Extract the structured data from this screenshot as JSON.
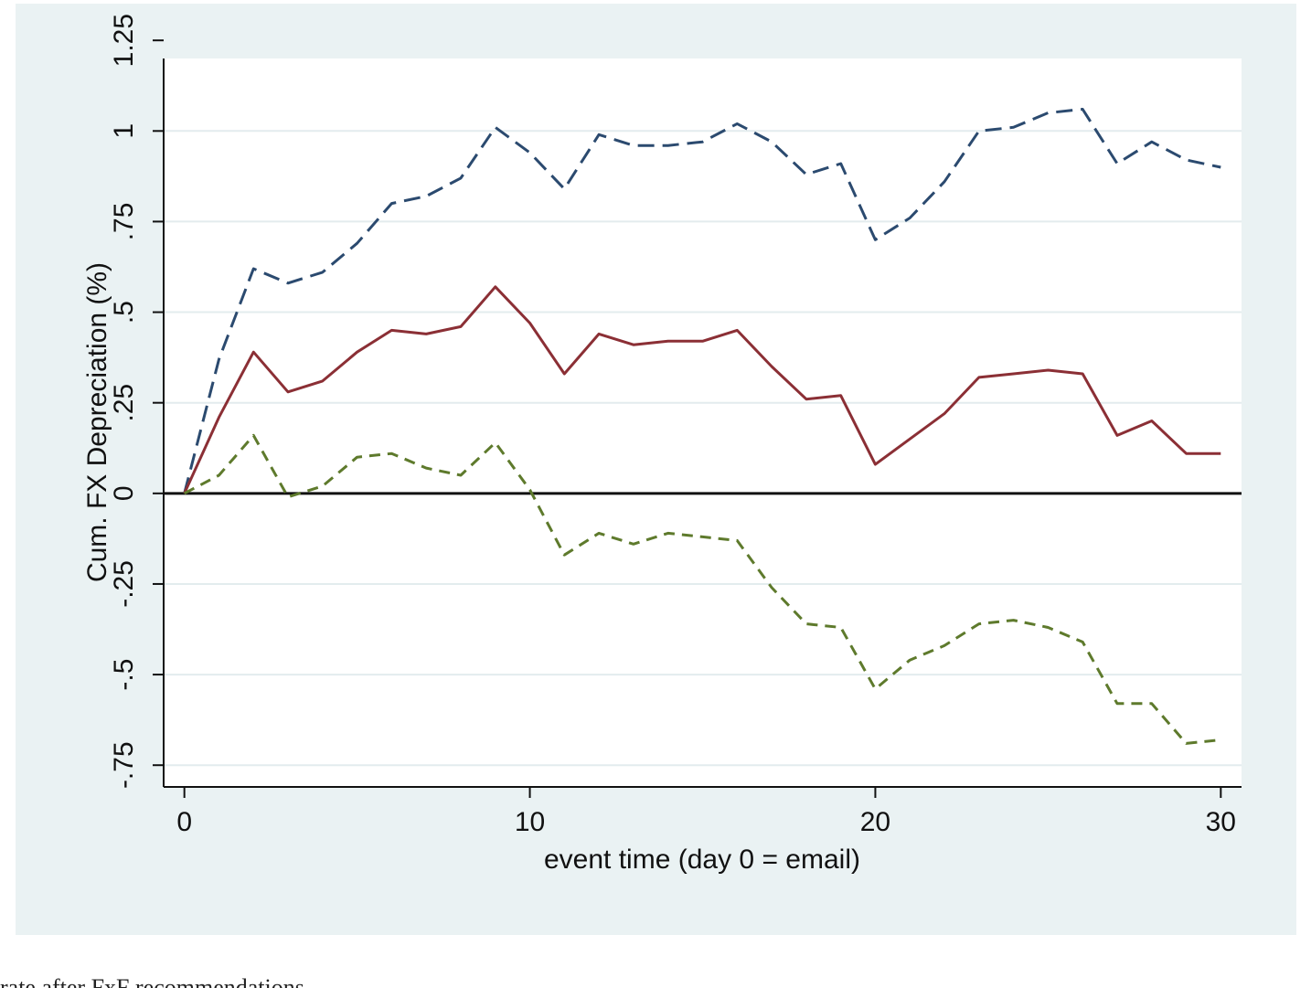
{
  "chart_data": {
    "type": "line",
    "title": "",
    "xlabel": "event time (day 0 = email)",
    "ylabel": "Cum. FX Depreciation (%)",
    "xlim": [
      -0.6,
      30.6
    ],
    "ylim": [
      -0.81,
      1.2
    ],
    "x_ticks": [
      0,
      10,
      20,
      30
    ],
    "y_ticks": [
      -0.75,
      -0.5,
      -0.25,
      0,
      0.25,
      0.5,
      0.75,
      1,
      1.25
    ],
    "x_tick_labels": [
      "0",
      "10",
      "20",
      "30"
    ],
    "y_tick_labels": [
      "-.75",
      "-.5",
      "-.25",
      "0",
      ".25",
      ".5",
      ".75",
      "1",
      "1.25"
    ],
    "grid": true,
    "zero_line": true,
    "x": [
      0,
      1,
      2,
      3,
      4,
      5,
      6,
      7,
      8,
      9,
      10,
      11,
      12,
      13,
      14,
      15,
      16,
      17,
      18,
      19,
      20,
      21,
      22,
      23,
      24,
      25,
      26,
      27,
      28,
      29,
      30
    ],
    "series": [
      {
        "color": "#2b4a6f",
        "style": "dashed-long",
        "values": [
          0.0,
          0.37,
          0.62,
          0.58,
          0.61,
          0.69,
          0.8,
          0.82,
          0.87,
          1.01,
          0.94,
          0.84,
          0.99,
          0.96,
          0.96,
          0.97,
          1.02,
          0.97,
          0.88,
          0.91,
          0.7,
          0.76,
          0.86,
          1.0,
          1.01,
          1.05,
          1.06,
          0.91,
          0.97,
          0.92,
          0.9
        ]
      },
      {
        "color": "#8b2f35",
        "style": "solid",
        "values": [
          0.0,
          0.21,
          0.39,
          0.28,
          0.31,
          0.39,
          0.45,
          0.44,
          0.46,
          0.57,
          0.47,
          0.33,
          0.44,
          0.41,
          0.42,
          0.42,
          0.45,
          0.35,
          0.26,
          0.27,
          0.08,
          0.15,
          0.22,
          0.32,
          0.33,
          0.34,
          0.33,
          0.16,
          0.2,
          0.11,
          0.11
        ]
      },
      {
        "color": "#5e7a2c",
        "style": "dashed-short",
        "values": [
          0.0,
          0.05,
          0.16,
          -0.01,
          0.02,
          0.1,
          0.11,
          0.07,
          0.05,
          0.14,
          0.01,
          -0.17,
          -0.11,
          -0.14,
          -0.11,
          -0.12,
          -0.13,
          -0.26,
          -0.36,
          -0.37,
          -0.54,
          -0.46,
          -0.42,
          -0.36,
          -0.35,
          -0.37,
          -0.41,
          -0.58,
          -0.58,
          -0.69,
          -0.68
        ]
      }
    ]
  },
  "caption": "rate after FxF recommendations"
}
